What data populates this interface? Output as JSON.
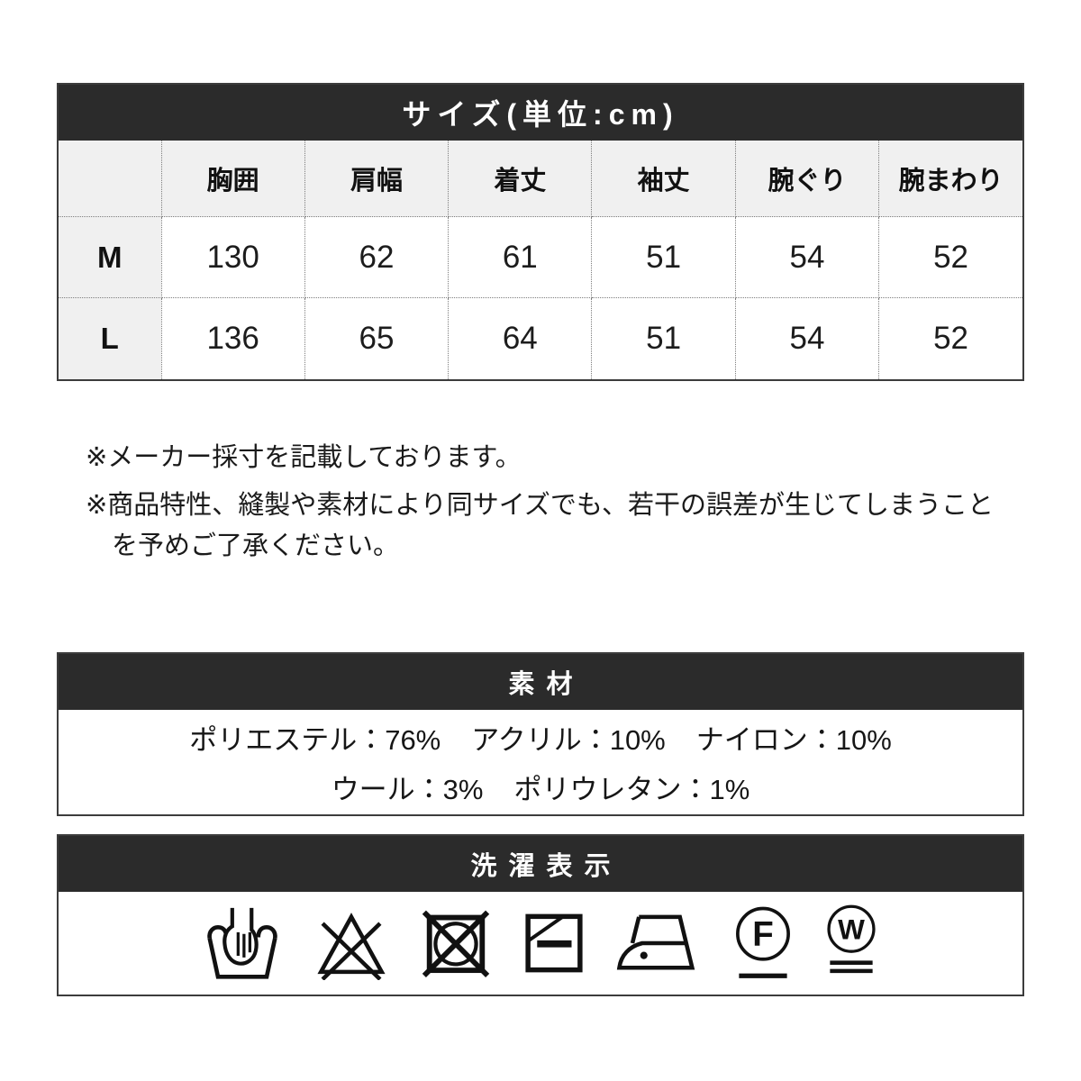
{
  "colors": {
    "bar_bg": "#2b2b2b",
    "bar_text": "#ffffff",
    "header_cell_bg": "#f0f0f0",
    "cell_bg": "#ffffff",
    "border_solid": "#3c3c3c",
    "border_dotted": "#7d7d7d",
    "text": "#161616"
  },
  "size_table": {
    "title": "サイズ(単位:cm)",
    "corner_label": "",
    "columns": [
      "胸囲",
      "肩幅",
      "着丈",
      "袖丈",
      "腕ぐり",
      "腕まわり"
    ],
    "rows": [
      {
        "label": "M",
        "values": [
          "130",
          "62",
          "61",
          "51",
          "54",
          "52"
        ]
      },
      {
        "label": "L",
        "values": [
          "136",
          "65",
          "64",
          "51",
          "54",
          "52"
        ]
      }
    ]
  },
  "notes": [
    "※メーカー採寸を記載しております。",
    "※商品特性、縫製や素材により同サイズでも、若干の誤差が生じてしまうことを予めご了承ください。"
  ],
  "material": {
    "title": "素材",
    "separator": "：",
    "lines": [
      [
        {
          "name": "ポリエステル",
          "value": "76%"
        },
        {
          "name": "アクリル",
          "value": "10%"
        },
        {
          "name": "ナイロン",
          "value": "10%"
        }
      ],
      [
        {
          "name": "ウール",
          "value": "3%"
        },
        {
          "name": "ポリウレタン",
          "value": "1%"
        }
      ]
    ]
  },
  "laundry": {
    "title": "洗濯表示",
    "icons": [
      "hand-wash-icon",
      "do-not-bleach-icon",
      "do-not-tumble-dry-icon",
      "dry-flat-in-shade-icon",
      "iron-low-temp-icon",
      "dry-clean-petroleum-gentle-icon",
      "wet-clean-very-gentle-icon"
    ]
  }
}
